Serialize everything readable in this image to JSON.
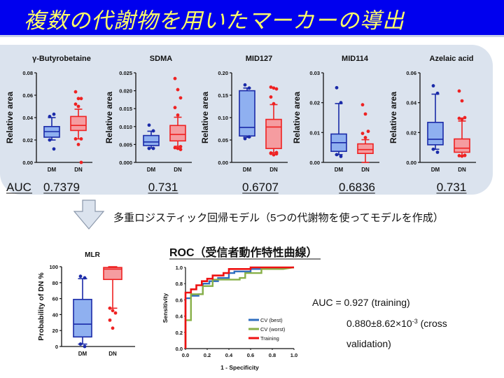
{
  "title": "複数の代謝物を用いたマーカーの導出",
  "auc_label": "AUC",
  "model_note": "多重ロジスティック回帰モデル（5つの代謝物を使ってモデルを作成）",
  "roc_heading": "ROC（受信者動作特性曲線）",
  "auc_summary": {
    "line1": "AUC = 0.927 (training)",
    "line2_base": "0.880±8.62×10",
    "line2_exp": "-3",
    "line2_tail": " (cross",
    "line3": "validation)"
  },
  "colors": {
    "dm": "#1a2aa8",
    "dm_fill": "#8fb0f0",
    "dn": "#ee2222",
    "dn_fill": "#f59ca0",
    "title_bg": "#0000ee",
    "title_fg": "#ffff66"
  },
  "chart_data": [
    {
      "type": "box",
      "title": "γ-Butyrobetaine",
      "ylabel": "Relative area",
      "categories": [
        "DM",
        "DN"
      ],
      "ylim": [
        0,
        0.08
      ],
      "yticks": [
        "0.00",
        "0.02",
        "0.04",
        "0.06",
        "0.08"
      ],
      "auc": "0.7379",
      "series": [
        {
          "name": "DM",
          "q1": 0.0225,
          "median": 0.0275,
          "q3": 0.032,
          "whisker_low": 0.02,
          "whisker_high": 0.04,
          "outliers": [
            0.041,
            0.043,
            0.02,
            0.012
          ]
        },
        {
          "name": "DN",
          "q1": 0.0285,
          "median": 0.033,
          "q3": 0.041,
          "whisker_low": 0.021,
          "whisker_high": 0.0475,
          "outliers": [
            0.063,
            0.057,
            0.057,
            0.052,
            0.05,
            0.021,
            0.021,
            0.016,
            0.0
          ]
        }
      ]
    },
    {
      "type": "box",
      "title": "SDMA",
      "ylabel": "Relative area",
      "categories": [
        "DM",
        "DN"
      ],
      "ylim": [
        0,
        0.025
      ],
      "yticks": [
        "0.000",
        "0.005",
        "0.010",
        "0.015",
        "0.020",
        "0.025"
      ],
      "auc": "0.731",
      "series": [
        {
          "name": "DM",
          "q1": 0.0047,
          "median": 0.0057,
          "q3": 0.0075,
          "whisker_low": 0.004,
          "whisker_high": 0.0087,
          "outliers": [
            0.0104,
            0.0088,
            0.0039,
            0.0039
          ]
        },
        {
          "name": "DN",
          "q1": 0.006,
          "median": 0.0078,
          "q3": 0.0103,
          "whisker_low": 0.0045,
          "whisker_high": 0.0126,
          "outliers": [
            0.0234,
            0.0203,
            0.018,
            0.0153,
            0.0132,
            0.0044,
            0.0041,
            0.0039,
            0.0036
          ]
        }
      ]
    },
    {
      "type": "box",
      "title": "MID127",
      "ylabel": "Relative area",
      "categories": [
        "DM",
        "DN"
      ],
      "ylim": [
        0,
        0.2
      ],
      "yticks": [
        "0.00",
        "0.05",
        "0.10",
        "0.15",
        "0.20"
      ],
      "auc": "0.6707",
      "series": [
        {
          "name": "DM",
          "q1": 0.059,
          "median": 0.078,
          "q3": 0.16,
          "whisker_low": 0.056,
          "whisker_high": 0.166,
          "outliers": [
            0.173,
            0.166,
            0.053,
            0.057
          ]
        },
        {
          "name": "DN",
          "q1": 0.031,
          "median": 0.079,
          "q3": 0.096,
          "whisker_low": 0.022,
          "whisker_high": 0.129,
          "outliers": [
            0.168,
            0.166,
            0.164,
            0.146,
            0.131,
            0.022,
            0.02,
            0.017,
            0.019,
            0.021
          ]
        }
      ]
    },
    {
      "type": "box",
      "title": "MID114",
      "ylabel": "Relative area",
      "categories": [
        "DM",
        "DN"
      ],
      "ylim": [
        0,
        0.03
      ],
      "yticks": [
        "0.00",
        "0.01",
        "0.02",
        "0.03"
      ],
      "auc": "0.6836",
      "series": [
        {
          "name": "DM",
          "q1": 0.0037,
          "median": 0.0066,
          "q3": 0.0095,
          "whisker_low": 0.0026,
          "whisker_high": 0.0197,
          "outliers": [
            0.025,
            0.02,
            0.0026,
            0.002
          ]
        },
        {
          "name": "DN",
          "q1": 0.003,
          "median": 0.0043,
          "q3": 0.0062,
          "whisker_low": 0.0,
          "whisker_high": 0.0076,
          "outliers": [
            0.0193,
            0.0162,
            0.0104,
            0.0097,
            0.0083
          ]
        }
      ]
    },
    {
      "type": "box",
      "title": "Azelaic acid",
      "ylabel": "Relative area",
      "categories": [
        "DM",
        "DN"
      ],
      "ylim": [
        0,
        0.06
      ],
      "yticks": [
        "0.00",
        "0.02",
        "0.04",
        "0.06"
      ],
      "auc": "0.731",
      "series": [
        {
          "name": "DM",
          "q1": 0.0118,
          "median": 0.0155,
          "q3": 0.0268,
          "whisker_low": 0.0088,
          "whisker_high": 0.0457,
          "outliers": [
            0.0513,
            0.0463,
            0.0088,
            0.0068
          ]
        },
        {
          "name": "DN",
          "q1": 0.0068,
          "median": 0.0095,
          "q3": 0.0157,
          "whisker_low": 0.0045,
          "whisker_high": 0.0277,
          "outliers": [
            0.0478,
            0.0412,
            0.03,
            0.0295,
            0.029,
            0.0048,
            0.0045,
            0.0042,
            0.0046
          ]
        }
      ]
    },
    {
      "type": "box",
      "title": "MLR",
      "ylabel": "Probability of DN %",
      "categories": [
        "DM",
        "DN"
      ],
      "ylim": [
        0,
        100
      ],
      "yticks": [
        "0",
        "20",
        "40",
        "60",
        "80",
        "100"
      ],
      "series": [
        {
          "name": "DM",
          "q1": 12,
          "median": 28,
          "q3": 59,
          "whisker_low": 3,
          "whisker_high": 85,
          "outliers": [
            88,
            86,
            3,
            0
          ]
        },
        {
          "name": "DN",
          "q1": 84,
          "median": 97,
          "q3": 99,
          "whisker_low": 48,
          "whisker_high": 100,
          "outliers": [
            48,
            45,
            42,
            33,
            23
          ]
        }
      ]
    },
    {
      "type": "line",
      "title": "ROC（受信者動作特性曲線）",
      "xlabel": "1 - Specificity",
      "ylabel": "Sensitivity",
      "xlim": [
        0,
        1
      ],
      "ylim": [
        0,
        1
      ],
      "xticks": [
        "0.0",
        "0.2",
        "0.4",
        "0.6",
        "0.8",
        "1.0"
      ],
      "yticks": [
        "0.0",
        "0.2",
        "0.4",
        "0.6",
        "0.8",
        "1.0"
      ],
      "legend": "bottom-right",
      "series": [
        {
          "name": "CV (best)",
          "color": "#2f6ec0",
          "x": [
            0,
            0,
            0.05,
            0.05,
            0.12,
            0.12,
            0.16,
            0.16,
            0.22,
            0.22,
            0.3,
            0.3,
            0.4,
            0.4,
            0.45,
            0.45,
            0.6,
            0.6,
            0.7,
            1.0
          ],
          "y": [
            0,
            0.62,
            0.62,
            0.65,
            0.65,
            0.67,
            0.67,
            0.8,
            0.8,
            0.83,
            0.83,
            0.87,
            0.87,
            0.93,
            0.93,
            0.95,
            0.95,
            0.98,
            0.98,
            1.0
          ]
        },
        {
          "name": "CV (worst)",
          "color": "#88b048",
          "x": [
            0,
            0,
            0.05,
            0.05,
            0.16,
            0.16,
            0.25,
            0.25,
            0.5,
            0.5,
            0.55,
            0.55,
            0.7,
            0.7,
            0.9,
            1.0
          ],
          "y": [
            0,
            0.35,
            0.35,
            0.67,
            0.67,
            0.77,
            0.77,
            0.85,
            0.85,
            0.87,
            0.87,
            0.93,
            0.93,
            0.98,
            0.98,
            1.0
          ]
        },
        {
          "name": "Training",
          "color": "#ee1111",
          "x": [
            0,
            0,
            0.05,
            0.05,
            0.1,
            0.1,
            0.15,
            0.15,
            0.2,
            0.2,
            0.25,
            0.25,
            0.35,
            0.35,
            0.4,
            0.4,
            0.6,
            0.6,
            1.0
          ],
          "y": [
            0,
            0.69,
            0.69,
            0.73,
            0.73,
            0.78,
            0.78,
            0.83,
            0.83,
            0.86,
            0.86,
            0.9,
            0.9,
            0.93,
            0.93,
            0.98,
            0.98,
            1.0,
            1.0
          ]
        }
      ]
    }
  ]
}
